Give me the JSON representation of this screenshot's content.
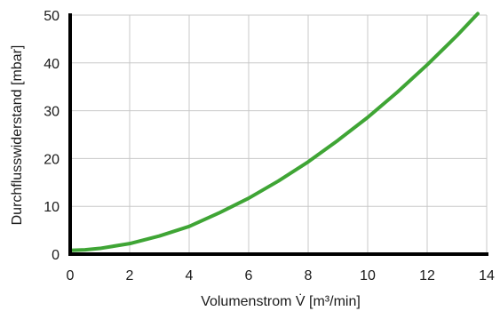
{
  "chart_data": {
    "type": "line",
    "xlabel": "Volumenstrom V̇ [m³/min]",
    "ylabel": "Durchflusswiderstand [mbar]",
    "xlim": [
      0,
      14
    ],
    "ylim": [
      0,
      50
    ],
    "x_ticks": [
      0,
      2,
      4,
      6,
      8,
      10,
      12,
      14
    ],
    "y_ticks": [
      0,
      10,
      20,
      30,
      40,
      50
    ],
    "grid": true,
    "series": [
      {
        "color": "#3fa535",
        "x": [
          0,
          0.5,
          1,
          2,
          3,
          4,
          5,
          6,
          7,
          8,
          9,
          10,
          11,
          12,
          13,
          13.7
        ],
        "y": [
          0.8,
          0.9,
          1.2,
          2.2,
          3.8,
          5.8,
          8.6,
          11.7,
          15.3,
          19.3,
          23.8,
          28.6,
          33.9,
          39.6,
          45.7,
          50.3
        ]
      }
    ]
  }
}
